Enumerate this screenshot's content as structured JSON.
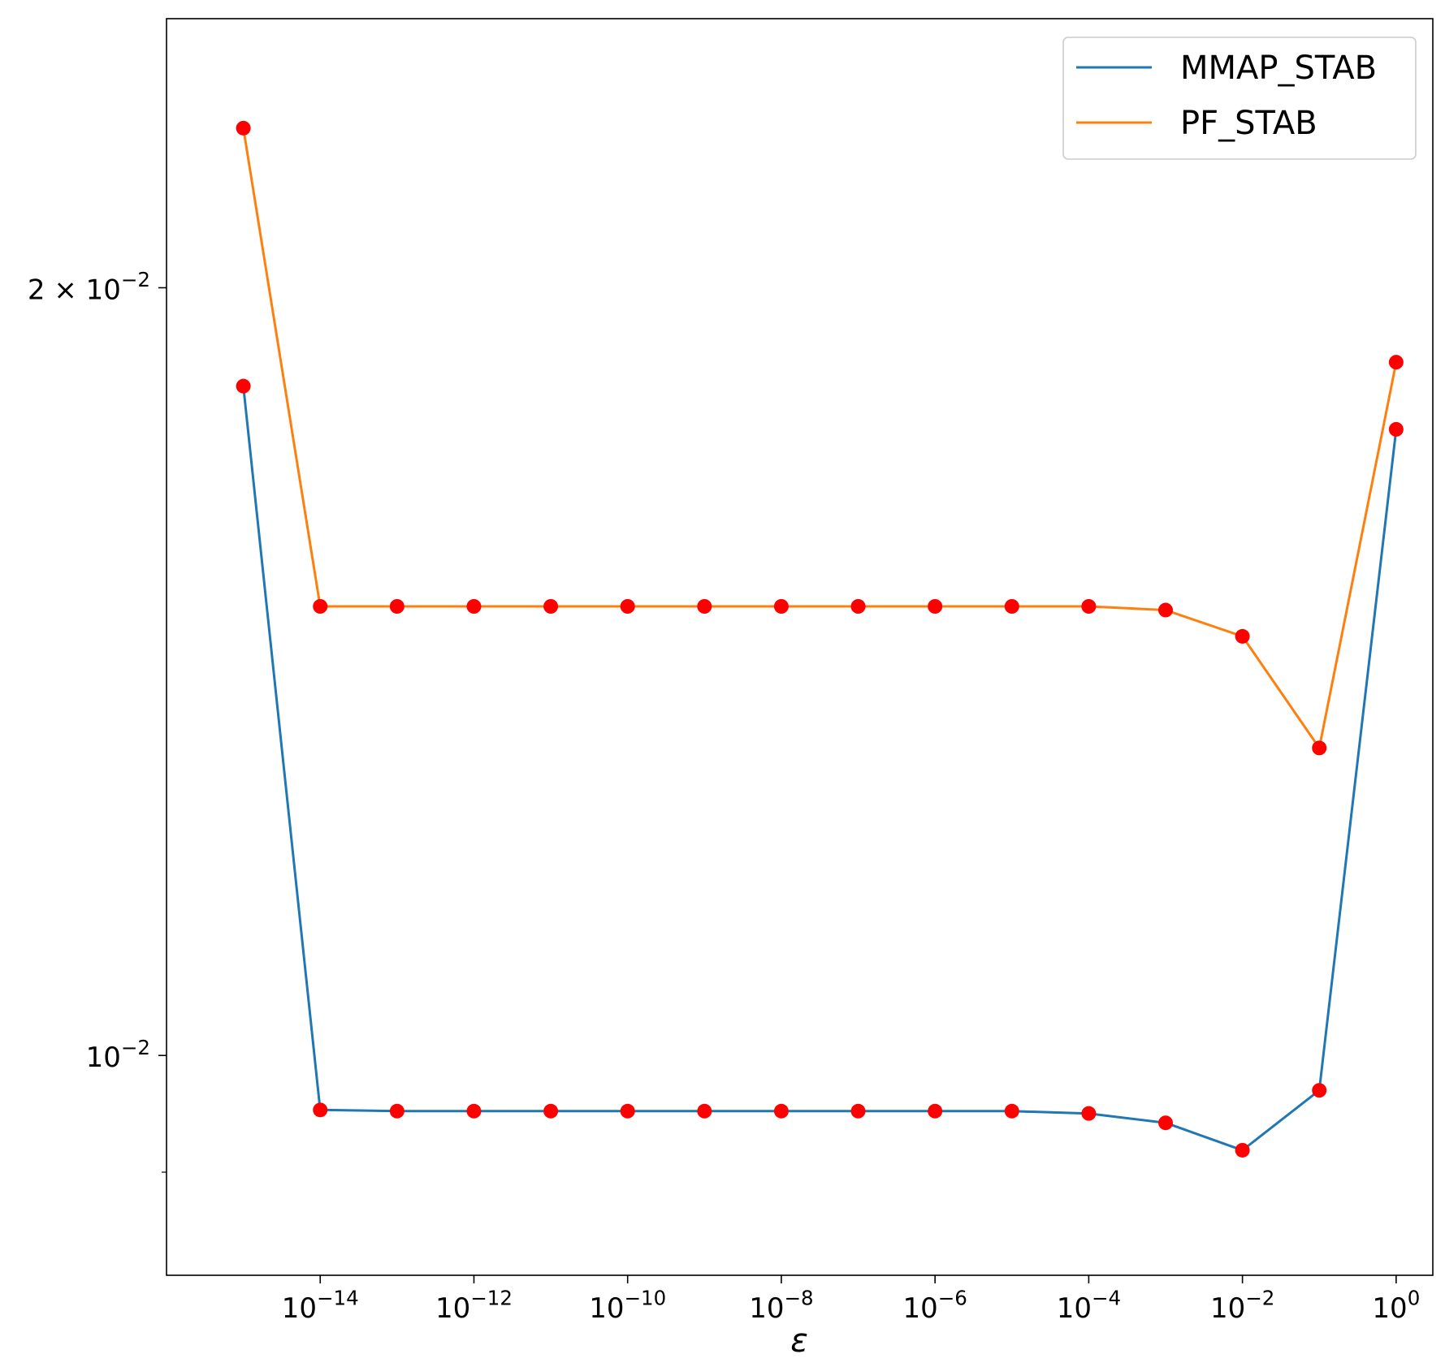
{
  "chart_data": {
    "type": "line",
    "title": "",
    "xlabel": "ε",
    "ylabel": "",
    "xscale": "log",
    "yscale": "log",
    "xlim": [
      1e-16,
      3
    ],
    "ylim": [
      0.0082,
      0.0255
    ],
    "x_ticks": [
      {
        "base": "10",
        "exp": "−14",
        "value": 1e-14
      },
      {
        "base": "10",
        "exp": "−12",
        "value": 1e-12
      },
      {
        "base": "10",
        "exp": "−10",
        "value": 1e-10
      },
      {
        "base": "10",
        "exp": "−8",
        "value": 1e-08
      },
      {
        "base": "10",
        "exp": "−6",
        "value": 1e-06
      },
      {
        "base": "10",
        "exp": "−4",
        "value": 0.0001
      },
      {
        "base": "10",
        "exp": "−2",
        "value": 0.01
      },
      {
        "base": "10",
        "exp": "0",
        "value": 1
      }
    ],
    "y_ticks": [
      {
        "prefix": "",
        "base": "10",
        "exp": "−2",
        "value": 0.01
      },
      {
        "prefix": "2 × ",
        "base": "10",
        "exp": "−2",
        "value": 0.02
      }
    ],
    "y_minor_ticks": [
      0.009
    ],
    "x": [
      1e-15,
      1e-14,
      1e-13,
      1e-12,
      1e-11,
      1e-10,
      1e-09,
      1e-08,
      1e-07,
      1e-06,
      1e-05,
      0.0001,
      0.001,
      0.01,
      0.1,
      1
    ],
    "series": [
      {
        "name": "MMAP_STAB",
        "color": "#1f77b4",
        "values": [
          0.0183,
          0.00952,
          0.00951,
          0.00951,
          0.00951,
          0.00951,
          0.00951,
          0.00951,
          0.00951,
          0.00951,
          0.00951,
          0.00949,
          0.00941,
          0.00918,
          0.00969,
          0.0176
        ]
      },
      {
        "name": "PF_STAB",
        "color": "#ff7f0e",
        "values": [
          0.0231,
          0.015,
          0.015,
          0.015,
          0.015,
          0.015,
          0.015,
          0.015,
          0.015,
          0.015,
          0.015,
          0.015,
          0.01495,
          0.0146,
          0.0132,
          0.0187
        ]
      }
    ],
    "marker_color": "#ff0000",
    "legend": {
      "position": "top-right"
    },
    "grid": false
  }
}
